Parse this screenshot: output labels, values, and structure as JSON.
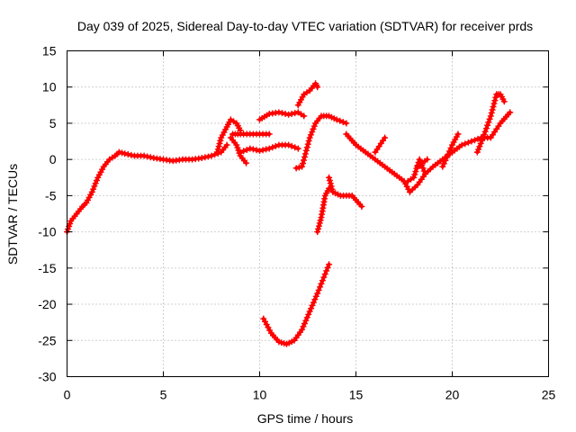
{
  "chart_data": {
    "type": "scatter",
    "title": "Day 039 of 2025, Sidereal Day-to-day VTEC variation (SDTVAR) for receiver prds",
    "xlabel": "GPS time / hours",
    "ylabel": "SDTVAR / TECUs",
    "xlim": [
      0,
      25
    ],
    "ylim": [
      -30,
      15
    ],
    "grid": true,
    "marker": "+",
    "x_ticks": [
      "0",
      "5",
      "10",
      "15",
      "20",
      "25"
    ],
    "y_ticks": [
      "15",
      "10",
      "5",
      "0",
      "-5",
      "-10",
      "-15",
      "-20",
      "-25",
      "-30"
    ],
    "series_color": "#ff0000",
    "series": [
      {
        "name": "main",
        "x": [
          0,
          0.2,
          0.5,
          0.8,
          1.0,
          1.3,
          1.6,
          1.9,
          2.2,
          2.5,
          2.7,
          3.0,
          3.5,
          4.0,
          4.5,
          5.0,
          5.5,
          6.0,
          6.5,
          7.0,
          7.5,
          8.0,
          8.3
        ],
        "y": [
          -10,
          -8.5,
          -7.5,
          -6.5,
          -6,
          -4.5,
          -2.5,
          -1,
          0,
          0.5,
          1,
          0.8,
          0.5,
          0.5,
          0.2,
          0,
          -0.2,
          0,
          0,
          0.2,
          0.5,
          1,
          2
        ]
      },
      {
        "name": "t8a",
        "x": [
          7.8,
          8.0,
          8.3,
          8.5,
          8.8,
          9.0
        ],
        "y": [
          1,
          3,
          4.5,
          5.5,
          5,
          4
        ]
      },
      {
        "name": "t8b",
        "x": [
          8.5,
          8.8,
          9.0,
          9.3
        ],
        "y": [
          3,
          2,
          0.5,
          -0.5
        ]
      },
      {
        "name": "t9a",
        "x": [
          8.6,
          9.0,
          9.5,
          10.0,
          10.5
        ],
        "y": [
          3.5,
          3.5,
          3.5,
          3.5,
          3.5
        ]
      },
      {
        "name": "t9b",
        "x": [
          9.0,
          9.5,
          10.0,
          10.5,
          11.0,
          11.5,
          12.0
        ],
        "y": [
          1,
          1.5,
          1.2,
          1.5,
          2,
          2,
          1.5
        ]
      },
      {
        "name": "t10",
        "x": [
          10.0,
          10.5,
          11.0,
          11.5,
          12.0,
          12.3
        ],
        "y": [
          5.5,
          6.3,
          6.5,
          6.2,
          6.5,
          6
        ]
      },
      {
        "name": "t11",
        "x": [
          12.0,
          12.3,
          12.6,
          12.9,
          13.0
        ],
        "y": [
          7.5,
          9,
          9.5,
          10.5,
          10
        ]
      },
      {
        "name": "t12",
        "x": [
          11.9,
          12.2,
          12.6,
          12.9,
          13.2,
          13.6,
          14.0,
          14.5
        ],
        "y": [
          -1.2,
          -1,
          3,
          5,
          6,
          6,
          5.5,
          5
        ]
      },
      {
        "name": "t13",
        "x": [
          13.0,
          13.2,
          13.4,
          13.6
        ],
        "y": [
          -10,
          -8,
          -5,
          -4
        ]
      },
      {
        "name": "t14",
        "x": [
          13.6,
          13.8,
          14.2,
          14.8,
          15.3
        ],
        "y": [
          -2.5,
          -4.5,
          -5,
          -5,
          -6.5
        ]
      },
      {
        "name": "t15",
        "x": [
          10.2,
          10.6,
          11.0,
          11.4,
          11.8,
          12.2,
          12.6,
          13.0,
          13.6
        ],
        "y": [
          -22,
          -24,
          -25.2,
          -25.5,
          -25,
          -23.5,
          -21,
          -18.5,
          -14.5
        ]
      },
      {
        "name": "t16",
        "x": [
          14.5,
          15.0,
          15.5,
          16.0,
          16.5,
          17.0,
          17.5,
          17.8,
          18.2,
          18.6
        ],
        "y": [
          3.5,
          2,
          1,
          0,
          -1,
          -2,
          -3,
          -4.5,
          -3.5,
          -2
        ]
      },
      {
        "name": "t17",
        "x": [
          16.0,
          16.5
        ],
        "y": [
          1,
          3
        ]
      },
      {
        "name": "t18",
        "x": [
          17.7,
          18.0,
          18.3,
          18.6,
          19.0,
          19.5,
          20.0,
          20.5,
          21.0,
          21.5,
          22.0,
          22.5,
          23.0
        ],
        "y": [
          -3,
          -2.5,
          0,
          -2,
          -1,
          0,
          1,
          2,
          2.5,
          3,
          3,
          5,
          6.5
        ]
      },
      {
        "name": "t19",
        "x": [
          18.2,
          18.7
        ],
        "y": [
          -1,
          0
        ]
      },
      {
        "name": "t20",
        "x": [
          19.5,
          20.0,
          20.3
        ],
        "y": [
          -1,
          2,
          3.5
        ]
      },
      {
        "name": "t21",
        "x": [
          21.3,
          21.6,
          22.0,
          22.3,
          22.5,
          22.7
        ],
        "y": [
          1,
          3,
          6,
          9,
          9,
          8
        ]
      }
    ]
  }
}
